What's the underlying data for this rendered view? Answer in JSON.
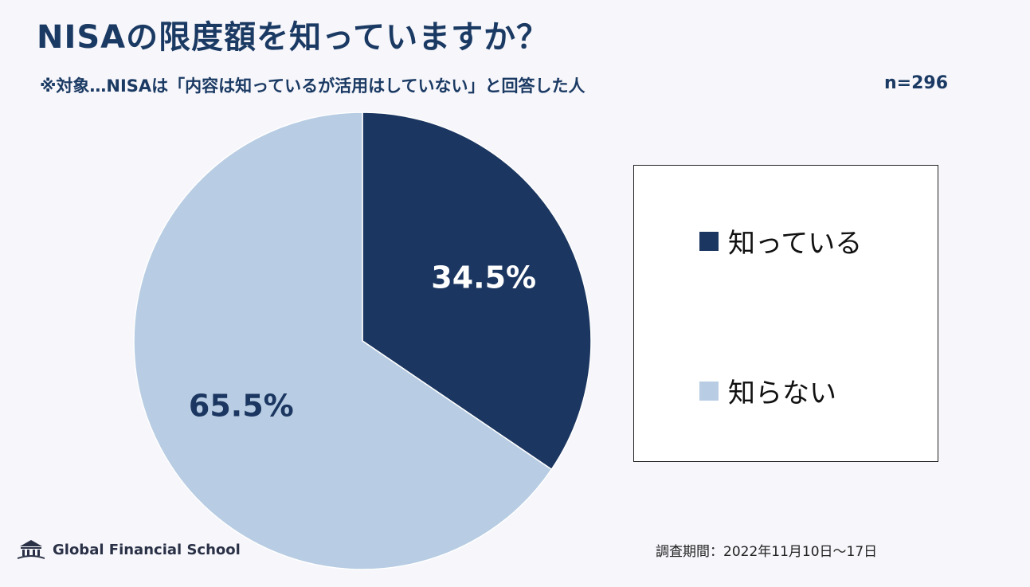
{
  "title": "NISAの限度額を知っていますか？",
  "subtitle": "※対象…NISAは「内容は知っているが活用はしていない」と回答した人",
  "sample_size": "n=296",
  "footer": {
    "logo_text": "Global Financial School",
    "survey_period": "調査期間：2022年11月10日～17日"
  },
  "colors": {
    "dark": "#1b3660",
    "light": "#b8cde3"
  },
  "chart_data": {
    "type": "pie",
    "categories": [
      "知っている",
      "知らない"
    ],
    "values": [
      34.5,
      65.5
    ],
    "labels": [
      "34.5%",
      "65.5%"
    ],
    "colors": [
      "#1b3660",
      "#b8cde3"
    ],
    "legend_position": "right"
  }
}
